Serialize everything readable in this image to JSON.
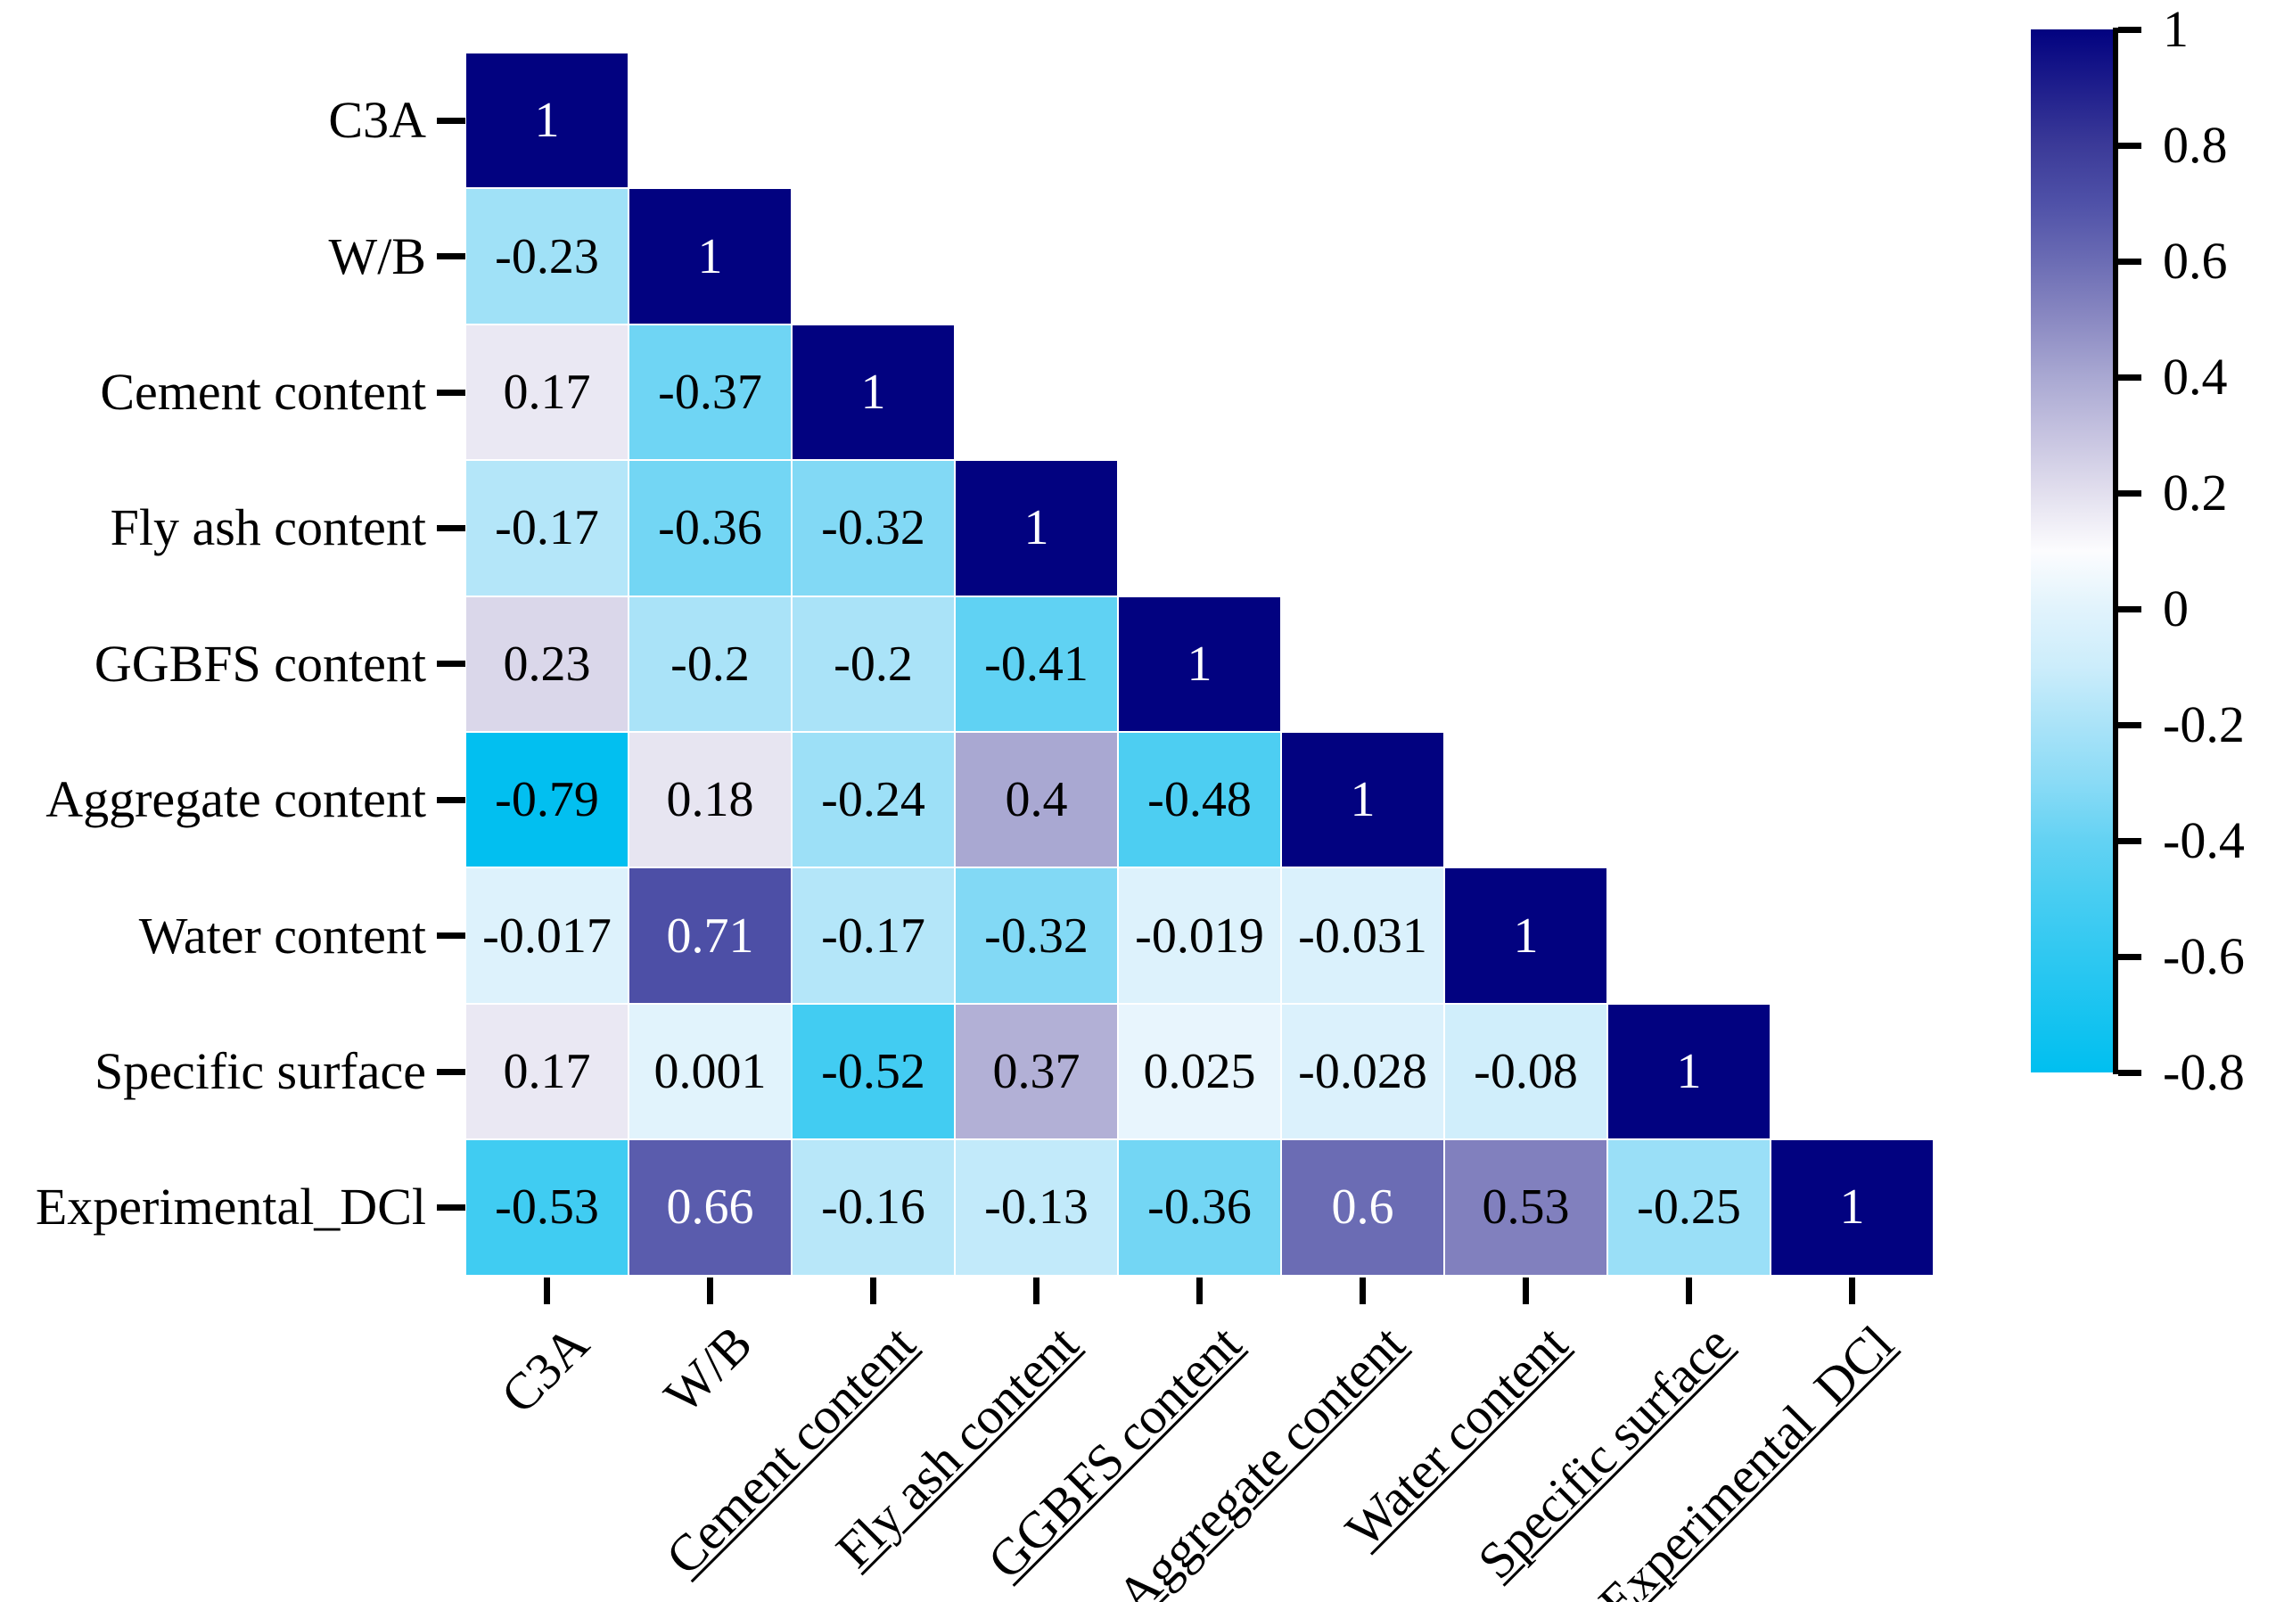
{
  "chart_data": {
    "type": "heatmap",
    "title": "",
    "description": "Lower-triangular Pearson correlation matrix heatmap",
    "variables": [
      "C3A",
      "W/B",
      "Cement content",
      "Fly ash content",
      "GGBFS content",
      "Aggregate content",
      "Water content",
      "Specific surface",
      "Experimental_DCl"
    ],
    "matrix_lower_triangle": [
      [
        1
      ],
      [
        -0.23,
        1
      ],
      [
        0.17,
        -0.37,
        1
      ],
      [
        -0.17,
        -0.36,
        -0.32,
        1
      ],
      [
        0.23,
        -0.2,
        -0.2,
        -0.41,
        1
      ],
      [
        -0.79,
        0.18,
        -0.24,
        0.4,
        -0.48,
        1
      ],
      [
        -0.017,
        0.71,
        -0.17,
        -0.32,
        -0.019,
        -0.031,
        1
      ],
      [
        0.17,
        0.001,
        -0.52,
        0.37,
        0.025,
        -0.028,
        -0.08,
        1
      ],
      [
        -0.53,
        0.66,
        -0.16,
        -0.13,
        -0.36,
        0.6,
        0.53,
        -0.25,
        1
      ]
    ],
    "colorbar": {
      "vmin": -0.8,
      "vmax": 1,
      "tick_values": [
        1,
        0.8,
        0.6,
        0.4,
        0.2,
        0,
        -0.2,
        -0.4,
        -0.6,
        -0.8
      ],
      "position": "right"
    },
    "colormap_stops": [
      {
        "v": 1.0,
        "c": "#020280"
      },
      {
        "v": 0.8,
        "c": "#3b3a98"
      },
      {
        "v": 0.7,
        "c": "#4f51a8"
      },
      {
        "v": 0.6,
        "c": "#6b6cb4"
      },
      {
        "v": 0.5,
        "c": "#8a89c2"
      },
      {
        "v": 0.4,
        "c": "#a9a8d2"
      },
      {
        "v": 0.3,
        "c": "#c6c3e0"
      },
      {
        "v": 0.2,
        "c": "#e2dfee"
      },
      {
        "v": 0.1,
        "c": "#fcfcfe"
      },
      {
        "v": 0.0,
        "c": "#e1f3fc"
      },
      {
        "v": -0.1,
        "c": "#ccedfb"
      },
      {
        "v": -0.2,
        "c": "#aae3f8"
      },
      {
        "v": -0.3,
        "c": "#8adbf6"
      },
      {
        "v": -0.4,
        "c": "#63d2f3"
      },
      {
        "v": -0.5,
        "c": "#47cdf2"
      },
      {
        "v": -0.6,
        "c": "#2fc8f1"
      },
      {
        "v": -0.8,
        "c": "#00bff0"
      }
    ],
    "cell_text_white_threshold": 0.6,
    "x_labels_underlined": [
      false,
      false,
      true,
      true,
      true,
      true,
      true,
      true,
      true
    ],
    "axes": {
      "grid": false,
      "x_label_rotation_deg": 45,
      "y_label_rotation_deg": 0
    }
  }
}
